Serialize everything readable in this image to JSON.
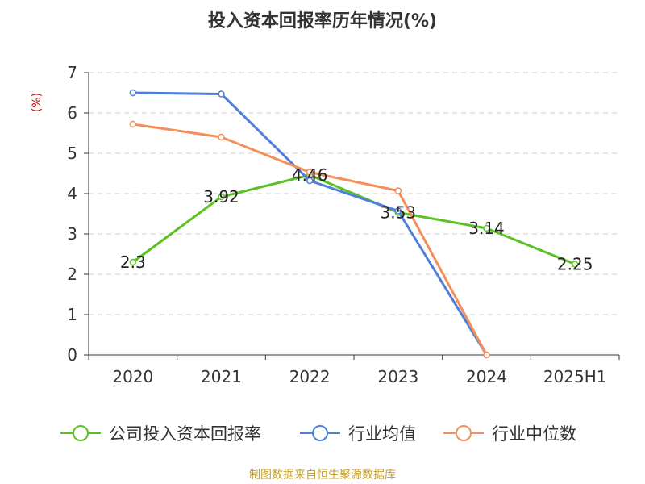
{
  "title": "投入资本回报率历年情况(%)",
  "source": "制图数据来自恒生聚源数据库",
  "chart_data": {
    "type": "line",
    "title": "投入资本回报率历年情况(%)",
    "ylabel": "(%)",
    "xlabel": "",
    "categories": [
      "2020",
      "2021",
      "2022",
      "2023",
      "2024",
      "2025H1"
    ],
    "ylim": [
      0,
      7
    ],
    "yticks": [
      0,
      1,
      2,
      3,
      4,
      5,
      6,
      7
    ],
    "grid": true,
    "legend_position": "bottom",
    "series": [
      {
        "name": "公司投入资本回报率",
        "color": "#5bc225",
        "values": [
          2.3,
          3.92,
          4.46,
          3.53,
          3.14,
          2.25
        ],
        "labels": [
          "2.3",
          "3.92",
          "4.46",
          "3.53",
          "3.14",
          "2.25"
        ]
      },
      {
        "name": "行业均值",
        "color": "#4f7fdb",
        "values": [
          6.5,
          6.47,
          4.32,
          3.57,
          0,
          null
        ]
      },
      {
        "name": "行业中位数",
        "color": "#f58f5a",
        "values": [
          5.72,
          5.4,
          4.53,
          4.07,
          0,
          null
        ]
      }
    ]
  }
}
